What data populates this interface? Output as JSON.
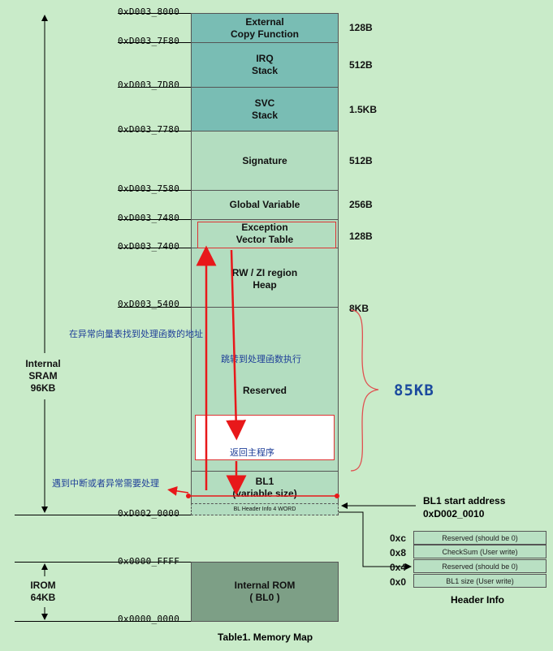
{
  "addresses": {
    "a8000": "0xD003_8000",
    "a7f80": "0xD003_7F80",
    "a7d80": "0xD003_7D80",
    "a7780": "0xD003_7780",
    "a7580": "0xD003_7580",
    "a7480": "0xD003_7480",
    "a7400": "0xD003_7400",
    "a5400": "0xD003_5400",
    "a0000": "0xD002_0000",
    "rom_top": "0x0000_FFFF",
    "rom_bot": "0x0000_0000"
  },
  "blocks": {
    "external_copy": "External\nCopy Function",
    "irq_stack": "IRQ\nStack",
    "svc_stack": "SVC\nStack",
    "signature": "Signature",
    "global_variable": "Global Variable",
    "exception_vector": "Exception\nVector Table",
    "rw_zi": "RW / ZI region\nHeap",
    "reserved": "Reserved",
    "bl1": "BL1\n(variable size)",
    "bl_header": "BL Header Info 4 WORD",
    "internal_rom": "Internal ROM\n( BL0 )"
  },
  "sizes": {
    "external_copy": "128B",
    "irq_stack": "512B",
    "svc_stack": "1.5KB",
    "signature": "512B",
    "global_variable": "256B",
    "exception_vector": "128B",
    "rw_zi": "8KB",
    "reserved_brace": "85KB"
  },
  "side_labels": {
    "sram": "Internal\nSRAM\n96KB",
    "irom": "IROM\n64KB"
  },
  "annotations": {
    "find_handler": "在异常向量表找到处理函数的地址",
    "jump_exec": "跳转到处理函数执行",
    "return_main": "返回主程序",
    "interrupt": "遇到中断或者异常需要处理"
  },
  "bl1_start": {
    "label": "BL1 start address",
    "address": "0xD002_0010"
  },
  "header_info": {
    "title": "Header Info",
    "rows": [
      {
        "offset": "0xc",
        "desc": "Reserved (should be 0)"
      },
      {
        "offset": "0x8",
        "desc": "CheckSum (User write)"
      },
      {
        "offset": "0x4",
        "desc": "Reserved (should be 0)"
      },
      {
        "offset": "0x0",
        "desc": "BL1 size (User write)"
      }
    ]
  },
  "caption": "Table1. Memory Map",
  "colors": {
    "background": "#c9ebc9",
    "stack_block": "#79bdb4",
    "light_block": "#b3ddc0",
    "rom_block": "#7d9f86",
    "arrow_red": "#e8181a",
    "brace_red": "#e05050",
    "note_blue": "#1f3f99"
  }
}
